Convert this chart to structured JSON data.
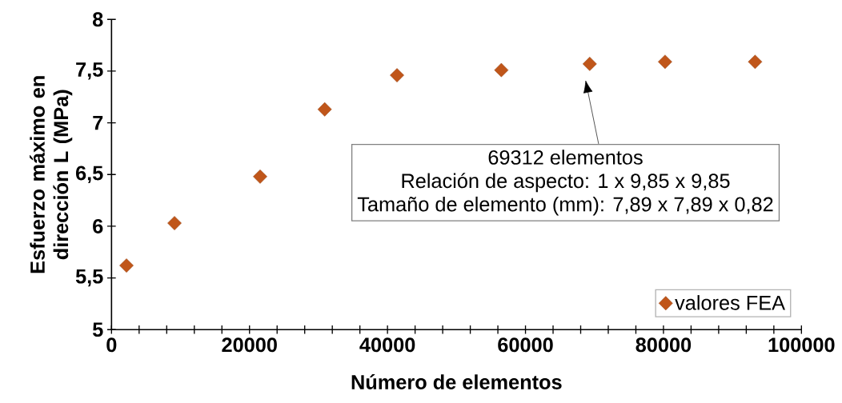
{
  "chart_data": {
    "type": "scatter",
    "xlabel": "Número de elementos",
    "ylabel": "Esfuerzo máximo en dirección L (MPa)",
    "x": [
      2170,
      9130,
      21540,
      30900,
      41380,
      56500,
      69312,
      80230,
      93280
    ],
    "series": [
      {
        "name": "valores FEA",
        "color": "#c0561a",
        "values": [
          5.62,
          6.03,
          6.48,
          7.13,
          7.46,
          7.51,
          7.57,
          7.59,
          7.59
        ]
      }
    ],
    "marker": "diamond",
    "legend": "bottom right",
    "grid": false,
    "xlim": [
      0,
      100000
    ],
    "ylim": [
      5,
      8
    ],
    "xticks": [
      0,
      {
        "value": 4000,
        "label": null
      },
      {
        "value": 8000,
        "label": null
      },
      {
        "value": 12000,
        "label": null
      },
      {
        "value": 16000,
        "label": null
      },
      20000,
      {
        "value": 24000,
        "label": null
      },
      {
        "value": 28000,
        "label": null
      },
      {
        "value": 32000,
        "label": null
      },
      {
        "value": 36000,
        "label": null
      },
      40000,
      {
        "value": 44000,
        "label": null
      },
      {
        "value": 48000,
        "label": null
      },
      {
        "value": 52000,
        "label": null
      },
      {
        "value": 56000,
        "label": null
      },
      60000,
      {
        "value": 64000,
        "label": null
      },
      {
        "value": 68000,
        "label": null
      },
      {
        "value": 72000,
        "label": null
      },
      {
        "value": 76000,
        "label": null
      },
      80000,
      {
        "value": 84000,
        "label": null
      },
      {
        "value": 88000,
        "label": null
      },
      {
        "value": 92000,
        "label": null
      },
      {
        "value": 96000,
        "label": null
      },
      100000
    ],
    "yticks": [
      5,
      {
        "value": 5.5,
        "label": "5,5"
      },
      6,
      {
        "value": 6.5,
        "label": "6,5"
      },
      7,
      {
        "value": 7.5,
        "label": "7,5"
      },
      8
    ],
    "annotations": [
      "69312 elementos",
      "Relación de aspecto: 1 x 9,85 x 9,85",
      "Tamaño de elemento (mm): 7,89 x 7,89 x 0,82"
    ]
  }
}
